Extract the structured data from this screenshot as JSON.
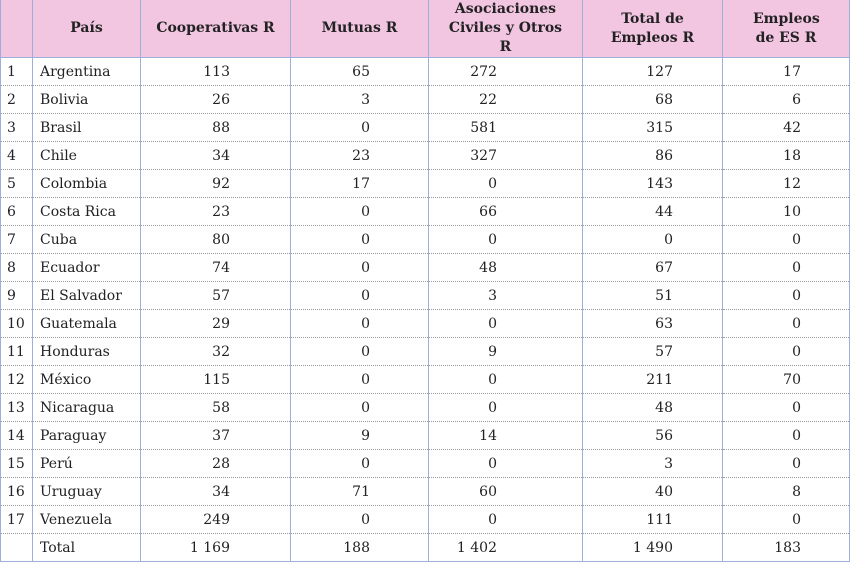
{
  "table": {
    "header": [
      "País",
      "Cooperativas R",
      "Mutuas R",
      "Asociaciones Civiles y Otros R",
      "Total de Empleos R",
      "Empleos de ES R"
    ],
    "rows": [
      [
        "1",
        "Argentina",
        "113",
        "65",
        "272",
        "127",
        "17"
      ],
      [
        "2",
        "Bolivia",
        "26",
        "3",
        "22",
        "68",
        "6"
      ],
      [
        "3",
        "Brasil",
        "88",
        "0",
        "581",
        "315",
        "42"
      ],
      [
        "4",
        "Chile",
        "34",
        "23",
        "327",
        "86",
        "18"
      ],
      [
        "5",
        "Colombia",
        "92",
        "17",
        "0",
        "143",
        "12"
      ],
      [
        "6",
        "Costa Rica",
        "23",
        "0",
        "66",
        "44",
        "10"
      ],
      [
        "7",
        "Cuba",
        "80",
        "0",
        "0",
        "0",
        "0"
      ],
      [
        "8",
        "Ecuador",
        "74",
        "0",
        "48",
        "67",
        "0"
      ],
      [
        "9",
        "El Salvador",
        "57",
        "0",
        "3",
        "51",
        "0"
      ],
      [
        "10",
        "Guatemala",
        "29",
        "0",
        "0",
        "63",
        "0"
      ],
      [
        "11",
        "Honduras",
        "32",
        "0",
        "9",
        "57",
        "0"
      ],
      [
        "12",
        "México",
        "115",
        "0",
        "0",
        "211",
        "70"
      ],
      [
        "13",
        "Nicaragua",
        "58",
        "0",
        "0",
        "48",
        "0"
      ],
      [
        "14",
        "Paraguay",
        "37",
        "9",
        "14",
        "56",
        "0"
      ],
      [
        "15",
        "Perú",
        "28",
        "0",
        "0",
        "3",
        "0"
      ],
      [
        "16",
        "Uruguay",
        "34",
        "71",
        "60",
        "40",
        "8"
      ],
      [
        "17",
        "Venezuela",
        "249",
        "0",
        "0",
        "111",
        "0"
      ]
    ],
    "total": {
      "label": "Total",
      "values": [
        "1 169",
        "188",
        "1 402",
        "1 490",
        "183"
      ]
    }
  }
}
